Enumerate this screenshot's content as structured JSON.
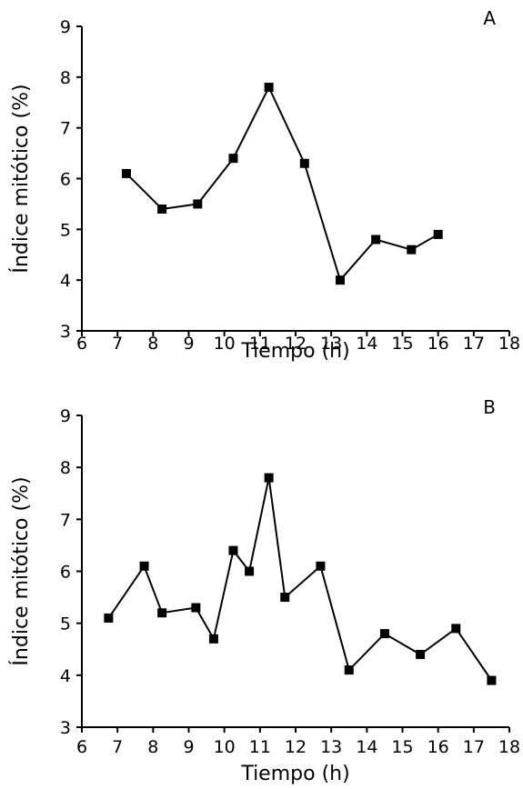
{
  "chart_data": [
    {
      "type": "line",
      "panel_label": "A",
      "xlabel": "Tiempo (h)",
      "ylabel": "Índice mitótico (%)",
      "xlim": [
        6,
        18
      ],
      "ylim": [
        3,
        9
      ],
      "xticks": [
        "6",
        "7",
        "8",
        "9",
        "10",
        "11",
        "12",
        "13",
        "14",
        "15",
        "16",
        "17",
        "18"
      ],
      "yticks": [
        "3",
        "4",
        "5",
        "6",
        "7",
        "8",
        "9"
      ],
      "grid": false,
      "marker": "square",
      "color": "#000000",
      "series": [
        {
          "x": [
            7.25,
            8.25,
            9.25,
            10.25,
            11.25,
            12.25,
            13.25,
            14.25,
            15.25,
            16.0
          ],
          "y": [
            6.1,
            5.4,
            5.5,
            6.4,
            7.8,
            6.3,
            4.0,
            4.8,
            4.6,
            4.9
          ]
        }
      ]
    },
    {
      "type": "line",
      "panel_label": "B",
      "xlabel": "Tiempo (h)",
      "ylabel": "Índice mitótico (%)",
      "xlim": [
        6,
        18
      ],
      "ylim": [
        3,
        9
      ],
      "xticks": [
        "6",
        "7",
        "8",
        "9",
        "10",
        "11",
        "12",
        "13",
        "14",
        "15",
        "16",
        "17",
        "18"
      ],
      "yticks": [
        "3",
        "4",
        "5",
        "6",
        "7",
        "8",
        "9"
      ],
      "grid": false,
      "marker": "square",
      "color": "#000000",
      "series": [
        {
          "x": [
            6.75,
            7.75,
            8.25,
            9.2,
            9.7,
            10.25,
            10.7,
            11.25,
            11.7,
            12.7,
            13.5,
            14.5,
            15.5,
            16.5,
            17.5
          ],
          "y": [
            5.1,
            6.1,
            5.2,
            5.3,
            4.7,
            6.4,
            6.0,
            7.8,
            5.5,
            6.1,
            4.1,
            4.8,
            4.4,
            4.9,
            3.9
          ]
        }
      ]
    }
  ]
}
